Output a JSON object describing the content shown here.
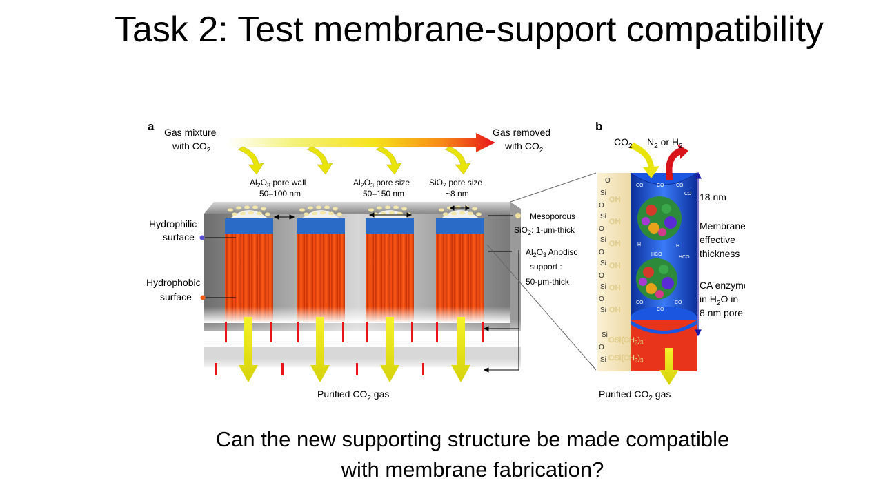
{
  "slide": {
    "title": "Task 2: Test membrane-support compatibility",
    "question_line1": "Can the new supporting structure be made compatible",
    "question_line2": "with membrane fabrication?"
  },
  "figure": {
    "panel_a": {
      "letter": "a",
      "gas_in_1": "Gas mixture",
      "gas_in_2": "with CO",
      "gas_out_1": "Gas removed",
      "gas_out_2": "with CO",
      "pore_wall_1": "Al",
      "pore_wall_2": "O",
      "pore_wall_3": " pore wall",
      "pore_wall_range": "50–100 nm",
      "pore_size_1": "Al",
      "pore_size_2": "O",
      "pore_size_3": " pore size",
      "pore_size_range": "50–150 nm",
      "sio2_pore_1": "SiO",
      "sio2_pore_2": " pore size",
      "sio2_pore_range": "~8 nm",
      "hydrophilic_1": "Hydrophilic",
      "hydrophilic_2": "surface",
      "hydrophobic_1": "Hydrophobic",
      "hydrophobic_2": "surface",
      "mesoporous_1": "Mesoporous",
      "mesoporous_2": "SiO",
      "mesoporous_3": ": 1-μm-thick",
      "anodisc_1": "Al",
      "anodisc_2": "O",
      "anodisc_3": " Anodisc",
      "anodisc_4": "support :",
      "anodisc_5": "50-μm-thick",
      "purified_1": "Purified CO",
      "purified_2": " gas"
    },
    "panel_b": {
      "letter": "b",
      "co2": "CO",
      "n2_or_h2_1": "N",
      "n2_or_h2_2": " or H",
      "thickness_18": "18 nm",
      "membrane_1": "Membrane",
      "membrane_2": "effective",
      "membrane_3": "thickness",
      "ca_1": "CA enzymes",
      "ca_2": "in H",
      "ca_3": "O in",
      "ca_4": "8 nm pore",
      "purified_1": "Purified CO",
      "purified_2": " gas",
      "silanol": "OH",
      "si": "Si",
      "o": "O",
      "osi_1": "OSi(CH",
      "osi_2": ")",
      "sub2": "2",
      "sub3": "3",
      "mol_co2": "CO",
      "mol_h": "H",
      "mol_hco3": "HCO"
    }
  },
  "colors": {
    "pore_orange": "#f04a10",
    "pore_blue": "#2a6bc8",
    "arrow_yellow": "#f2f20a",
    "membrane_blue": "#1a56e0",
    "silica_beige": "#f3e3b8",
    "hydrophilic_dot": "#5a4fd6",
    "hydrophobic_dot": "#f05a14",
    "mesoporous_dot": "#f2e2a0"
  }
}
